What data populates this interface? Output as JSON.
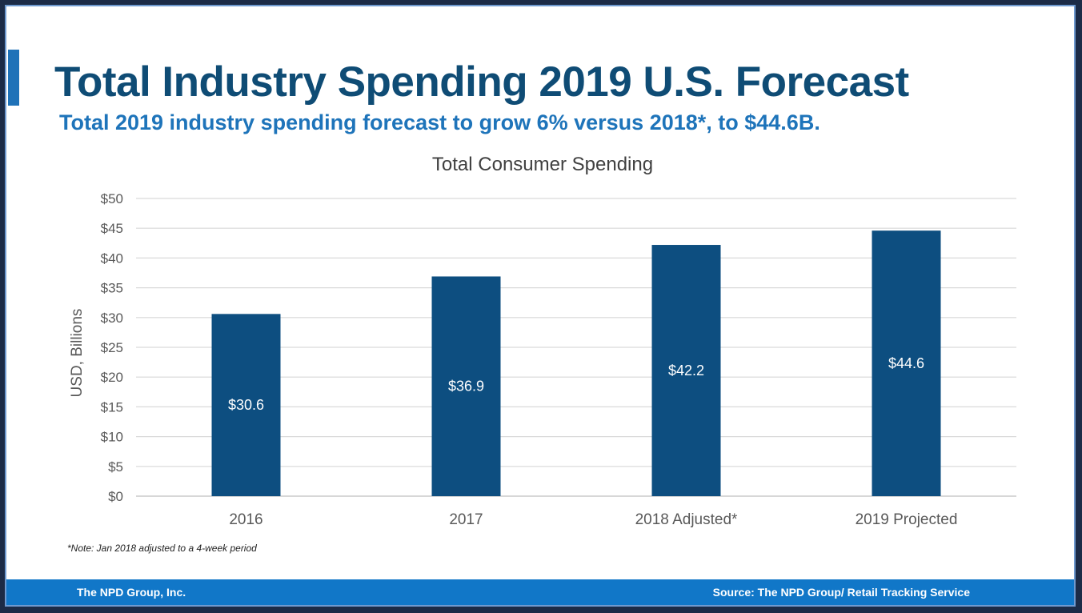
{
  "slide": {
    "title": "Total Industry Spending 2019 U.S. Forecast",
    "subtitle": "Total 2019 industry spending forecast to grow 6% versus 2018*, to $44.6B.",
    "note": "*Note: Jan 2018 adjusted to a 4-week period",
    "footer_left": "The NPD Group, Inc.",
    "footer_right": "Source: The NPD Group/ Retail Tracking Service"
  },
  "colors": {
    "bar": "#0d4e80",
    "title": "#0f4c75",
    "subtitle": "#1e74ba",
    "footer": "#1177c8",
    "grid": "#d9d9d9"
  },
  "chart_data": {
    "type": "bar",
    "title": "Total Consumer Spending",
    "ylabel": "USD, Billions",
    "xlabel": "",
    "categories": [
      "2016",
      "2017",
      "2018 Adjusted*",
      "2019 Projected"
    ],
    "values": [
      30.6,
      36.9,
      42.2,
      44.6
    ],
    "data_labels": [
      "$30.6",
      "$36.9",
      "$42.2",
      "$44.6"
    ],
    "ylim": [
      0,
      50
    ],
    "yticks": [
      0,
      5,
      10,
      15,
      20,
      25,
      30,
      35,
      40,
      45,
      50
    ],
    "ytick_labels": [
      "$0",
      "$5",
      "$10",
      "$15",
      "$20",
      "$25",
      "$30",
      "$35",
      "$40",
      "$45",
      "$50"
    ],
    "grid": true,
    "legend": "none"
  }
}
